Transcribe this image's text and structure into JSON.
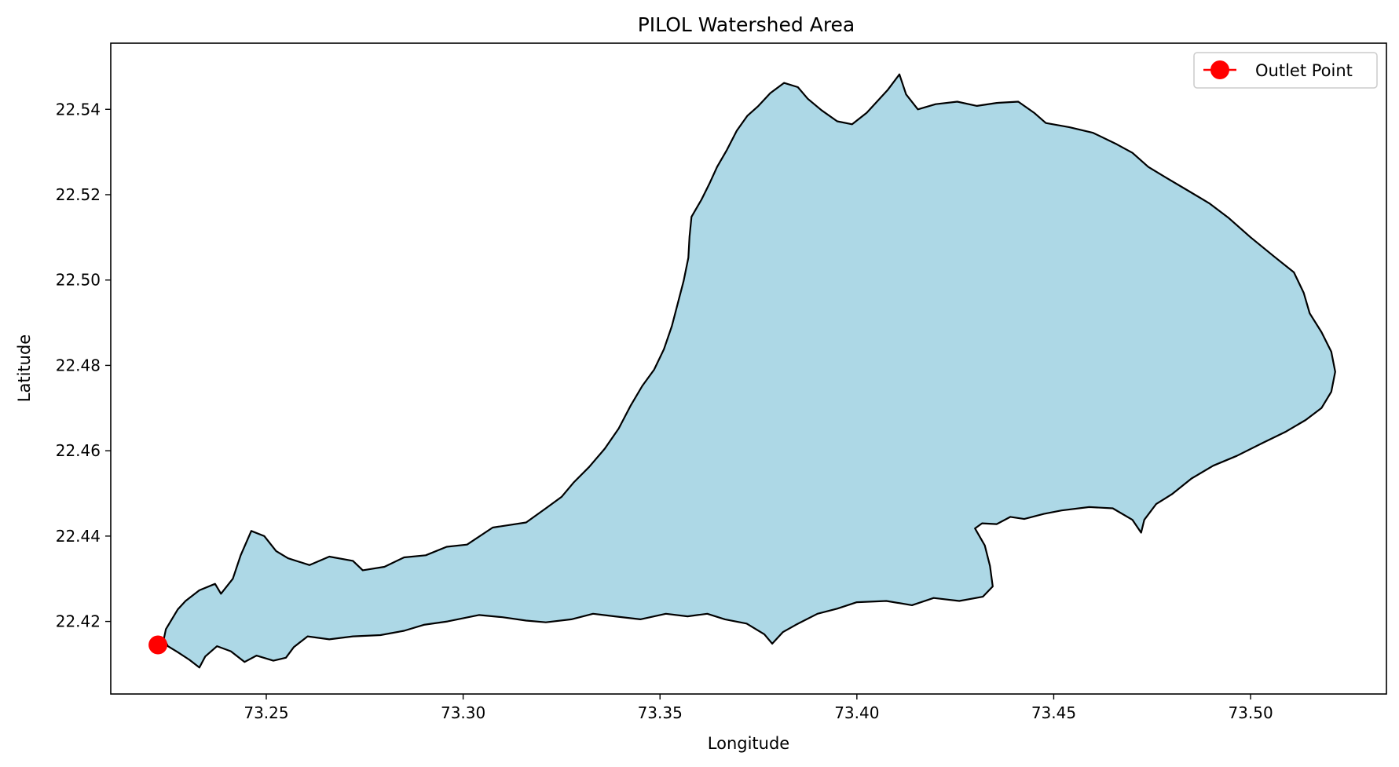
{
  "chart_data": {
    "type": "map",
    "title": "PILOL Watershed Area",
    "xlabel": "Longitude",
    "ylabel": "Latitude",
    "xlim": [
      73.2105,
      73.5345
    ],
    "ylim": [
      22.403,
      22.5555
    ],
    "xticks": [
      "73.25",
      "73.30",
      "73.35",
      "73.40",
      "73.45",
      "73.50"
    ],
    "xtick_values": [
      73.25,
      73.3,
      73.35,
      73.4,
      73.45,
      73.5
    ],
    "yticks": [
      "22.42",
      "22.44",
      "22.46",
      "22.48",
      "22.50",
      "22.52",
      "22.54"
    ],
    "ytick_values": [
      22.42,
      22.44,
      22.46,
      22.48,
      22.5,
      22.52,
      22.54
    ],
    "grid": false,
    "legend": {
      "position": "top-right",
      "entries": [
        {
          "label": "Outlet Point",
          "color": "#ff0000",
          "marker": "circle-with-line"
        }
      ]
    },
    "watershed": {
      "fill_color": "#add8e6",
      "edge_color": "#000000",
      "boundary": [
        [
          73.2245,
          22.4182
        ],
        [
          73.2275,
          22.4228
        ],
        [
          73.2295,
          22.4248
        ],
        [
          73.233,
          22.4273
        ],
        [
          73.237,
          22.4288
        ],
        [
          73.2385,
          22.4265
        ],
        [
          73.2415,
          22.43
        ],
        [
          73.2435,
          22.4355
        ],
        [
          73.2462,
          22.4412
        ],
        [
          73.2495,
          22.44
        ],
        [
          73.2525,
          22.4365
        ],
        [
          73.2555,
          22.4348
        ],
        [
          73.261,
          22.4332
        ],
        [
          73.266,
          22.4352
        ],
        [
          73.272,
          22.4342
        ],
        [
          73.2745,
          22.432
        ],
        [
          73.28,
          22.4328
        ],
        [
          73.285,
          22.435
        ],
        [
          73.2905,
          22.4355
        ],
        [
          73.2958,
          22.4375
        ],
        [
          73.301,
          22.438
        ],
        [
          73.3075,
          22.442
        ],
        [
          73.316,
          22.4432
        ],
        [
          73.321,
          22.4465
        ],
        [
          73.325,
          22.4492
        ],
        [
          73.328,
          22.4525
        ],
        [
          73.332,
          22.4562
        ],
        [
          73.336,
          22.4605
        ],
        [
          73.3395,
          22.4652
        ],
        [
          73.3425,
          22.4705
        ],
        [
          73.3455,
          22.4752
        ],
        [
          73.3485,
          22.479
        ],
        [
          73.351,
          22.4838
        ],
        [
          73.353,
          22.4892
        ],
        [
          73.3545,
          22.4945
        ],
        [
          73.356,
          22.4998
        ],
        [
          73.3572,
          22.5052
        ],
        [
          73.3575,
          22.5102
        ],
        [
          73.358,
          22.5148
        ],
        [
          73.3605,
          22.5188
        ],
        [
          73.3625,
          22.5225
        ],
        [
          73.3645,
          22.5265
        ],
        [
          73.367,
          22.5305
        ],
        [
          73.3695,
          22.535
        ],
        [
          73.3722,
          22.5385
        ],
        [
          73.375,
          22.5408
        ],
        [
          73.378,
          22.5438
        ],
        [
          73.3815,
          22.5462
        ],
        [
          73.385,
          22.5452
        ],
        [
          73.3875,
          22.5425
        ],
        [
          73.391,
          22.5398
        ],
        [
          73.395,
          22.5372
        ],
        [
          73.3988,
          22.5365
        ],
        [
          73.4025,
          22.5392
        ],
        [
          73.4078,
          22.5445
        ],
        [
          73.4108,
          22.5482
        ],
        [
          73.4125,
          22.5435
        ],
        [
          73.4155,
          22.54
        ],
        [
          73.42,
          22.5412
        ],
        [
          73.4255,
          22.5418
        ],
        [
          73.4305,
          22.5408
        ],
        [
          73.4355,
          22.5415
        ],
        [
          73.441,
          22.5418
        ],
        [
          73.445,
          22.5392
        ],
        [
          73.448,
          22.5368
        ],
        [
          73.454,
          22.5358
        ],
        [
          73.46,
          22.5345
        ],
        [
          73.466,
          22.5318
        ],
        [
          73.47,
          22.5298
        ],
        [
          73.474,
          22.5265
        ],
        [
          73.4785,
          22.524
        ],
        [
          73.484,
          22.521
        ],
        [
          73.4895,
          22.518
        ],
        [
          73.4945,
          22.5145
        ],
        [
          73.5,
          22.51
        ],
        [
          73.506,
          22.5055
        ],
        [
          73.511,
          22.5018
        ],
        [
          73.5135,
          22.497
        ],
        [
          73.515,
          22.4922
        ],
        [
          73.518,
          22.4878
        ],
        [
          73.5205,
          22.4832
        ],
        [
          73.5215,
          22.4785
        ],
        [
          73.5205,
          22.4738
        ],
        [
          73.518,
          22.47
        ],
        [
          73.514,
          22.4672
        ],
        [
          73.509,
          22.4645
        ],
        [
          73.503,
          22.4618
        ],
        [
          73.4965,
          22.4588
        ],
        [
          73.4905,
          22.4565
        ],
        [
          73.485,
          22.4535
        ],
        [
          73.48,
          22.4498
        ],
        [
          73.476,
          22.4475
        ],
        [
          73.473,
          22.4438
        ],
        [
          73.4722,
          22.4408
        ],
        [
          73.47,
          22.4438
        ],
        [
          73.465,
          22.4465
        ],
        [
          73.459,
          22.4468
        ],
        [
          73.452,
          22.446
        ],
        [
          73.4475,
          22.4452
        ],
        [
          73.4425,
          22.444
        ],
        [
          73.439,
          22.4445
        ],
        [
          73.4355,
          22.4428
        ],
        [
          73.4318,
          22.443
        ],
        [
          73.43,
          22.4418
        ],
        [
          73.4325,
          22.4378
        ],
        [
          73.4338,
          22.433
        ],
        [
          73.4345,
          22.4282
        ],
        [
          73.432,
          22.4258
        ],
        [
          73.426,
          22.4248
        ],
        [
          73.4195,
          22.4255
        ],
        [
          73.414,
          22.4238
        ],
        [
          73.4075,
          22.4248
        ],
        [
          73.4,
          22.4245
        ],
        [
          73.395,
          22.423
        ],
        [
          73.39,
          22.4218
        ],
        [
          73.3845,
          22.4192
        ],
        [
          73.3812,
          22.4175
        ],
        [
          73.3785,
          22.4148
        ],
        [
          73.3765,
          22.417
        ],
        [
          73.372,
          22.4195
        ],
        [
          73.3665,
          22.4205
        ],
        [
          73.362,
          22.4218
        ],
        [
          73.357,
          22.4212
        ],
        [
          73.3515,
          22.4218
        ],
        [
          73.345,
          22.4205
        ],
        [
          73.3385,
          22.4212
        ],
        [
          73.333,
          22.4218
        ],
        [
          73.3275,
          22.4205
        ],
        [
          73.321,
          22.4198
        ],
        [
          73.316,
          22.4202
        ],
        [
          73.31,
          22.421
        ],
        [
          73.304,
          22.4215
        ],
        [
          73.296,
          22.42
        ],
        [
          73.29,
          22.4192
        ],
        [
          73.285,
          22.4178
        ],
        [
          73.279,
          22.4168
        ],
        [
          73.272,
          22.4165
        ],
        [
          73.266,
          22.4158
        ],
        [
          73.2605,
          22.4165
        ],
        [
          73.257,
          22.414
        ],
        [
          73.255,
          22.4115
        ],
        [
          73.2518,
          22.4108
        ],
        [
          73.2475,
          22.412
        ],
        [
          73.2445,
          22.4105
        ],
        [
          73.241,
          22.413
        ],
        [
          73.2375,
          22.4142
        ],
        [
          73.2345,
          22.4118
        ],
        [
          73.233,
          22.4092
        ],
        [
          73.2305,
          22.411
        ],
        [
          73.2275,
          22.4128
        ],
        [
          73.225,
          22.4142
        ],
        [
          73.224,
          22.416
        ]
      ]
    },
    "outlet_point": {
      "label": "Outlet Point",
      "x": 73.2225,
      "y": 22.4145,
      "color": "#ff0000"
    }
  }
}
